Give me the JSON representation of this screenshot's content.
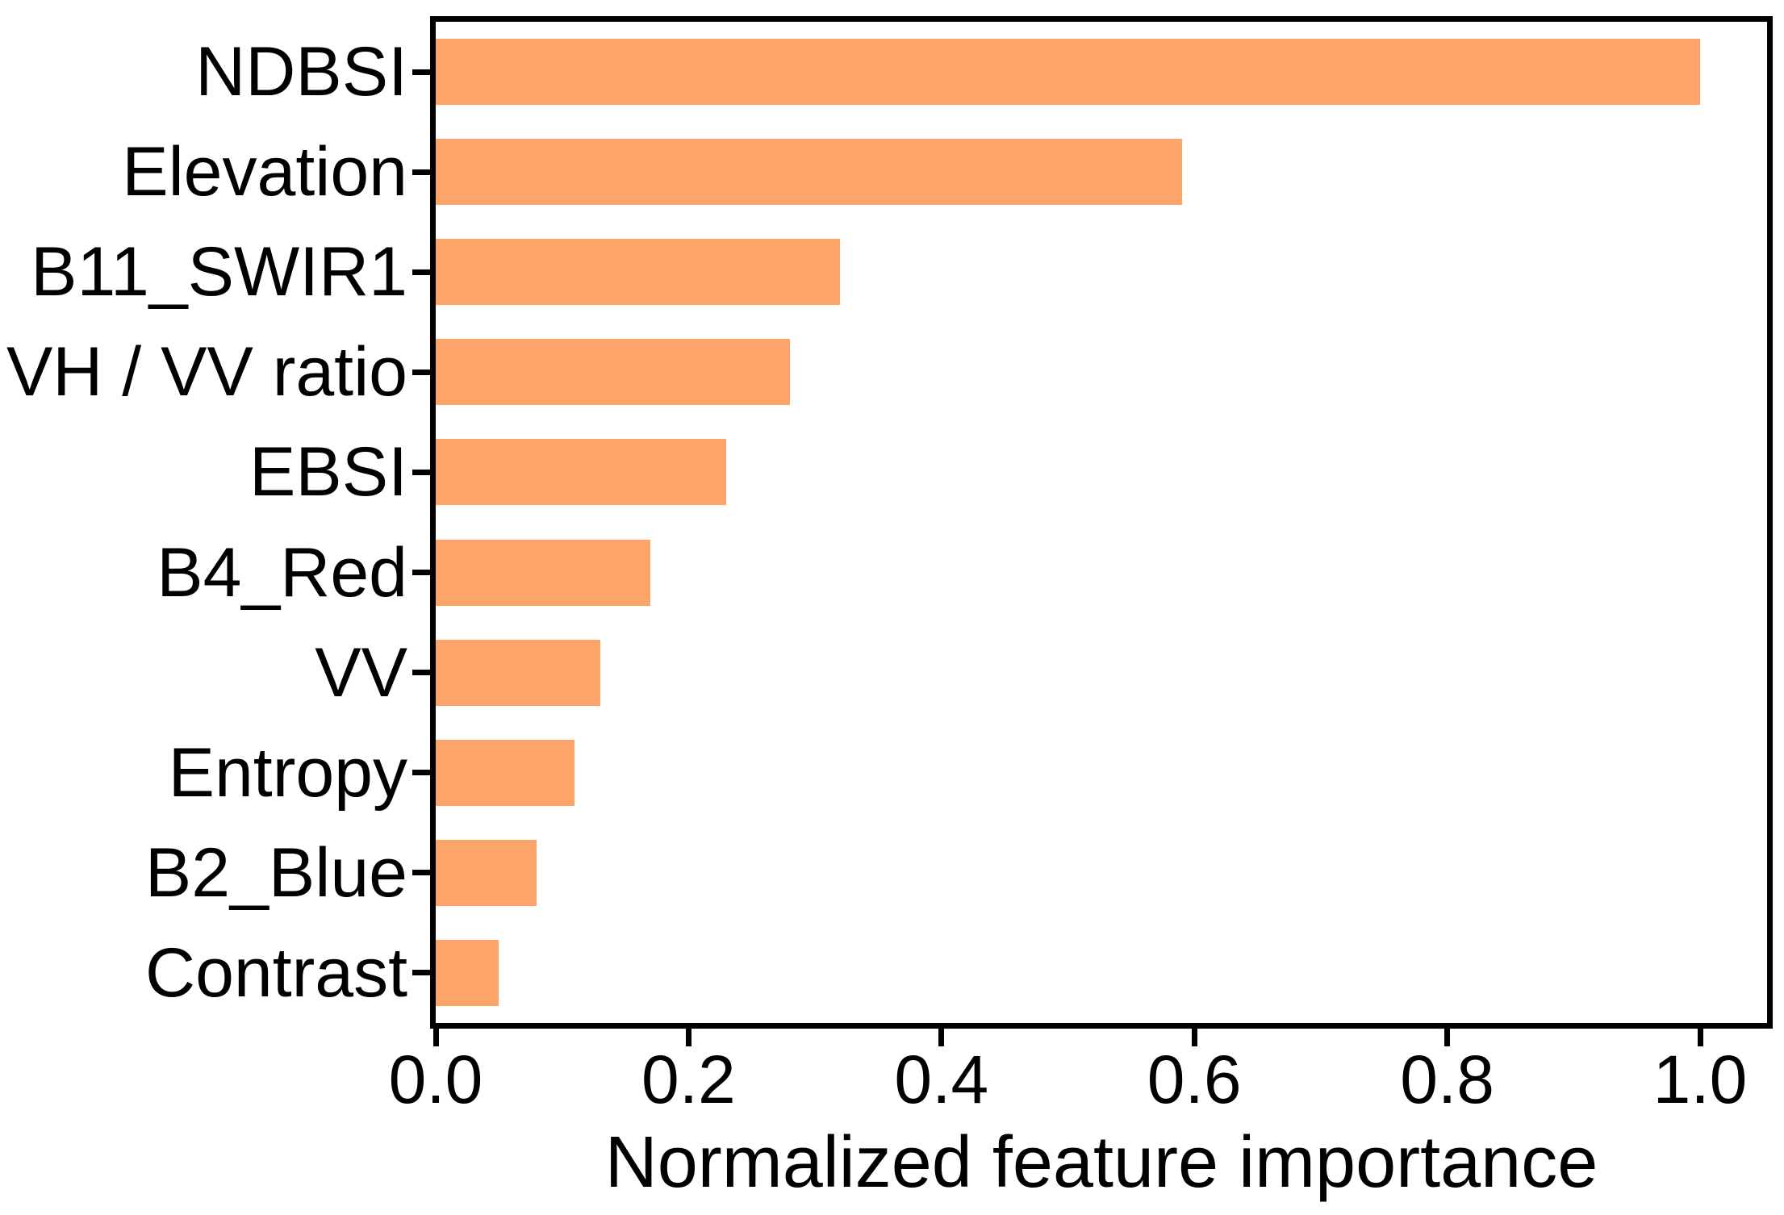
{
  "chart_data": {
    "type": "bar",
    "orientation": "horizontal",
    "title": "",
    "xlabel": "Normalized feature importance",
    "ylabel": "",
    "categories": [
      "NDBSI",
      "Elevation",
      "B11_SWIR1",
      "VH / VV ratio",
      "EBSI",
      "B4_Red",
      "VV",
      "Entropy",
      "B2_Blue",
      "Contrast"
    ],
    "values": [
      1.0,
      0.59,
      0.32,
      0.28,
      0.23,
      0.17,
      0.13,
      0.11,
      0.08,
      0.05
    ],
    "x_tick_labels": [
      "0.0",
      "0.2",
      "0.4",
      "0.6",
      "0.8",
      "1.0"
    ],
    "x_tick_values": [
      0.0,
      0.2,
      0.4,
      0.6,
      0.8,
      1.0
    ],
    "xlim": [
      0,
      1.053
    ],
    "grid": false,
    "legend": "none",
    "bar_color": "#FCA469",
    "axis_color": "#000000",
    "background_color": "#FFFFFF"
  }
}
